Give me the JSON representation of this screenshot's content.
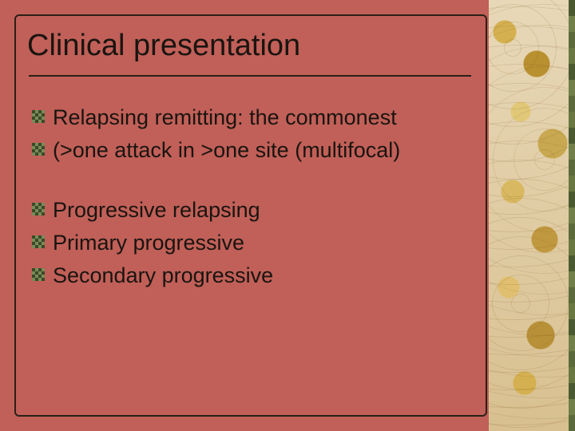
{
  "slide": {
    "title": "Clinical presentation",
    "background_color": "#c06058",
    "frame_border_color": "#2a2018",
    "title_color": "#1a1410",
    "title_fontsize": 38,
    "body_fontsize": 27,
    "body_color": "#1a1410",
    "bullet_fill": "#7a8a58",
    "bullet_pattern": "#3a4a28",
    "groups": [
      {
        "items": [
          "Relapsing remitting: the commonest",
          "(>one attack in >one site (multifocal)"
        ]
      },
      {
        "items": [
          "Progressive relapsing",
          "Primary progressive",
          "Secondary progressive"
        ]
      }
    ],
    "right_strip": {
      "base_gradient": [
        "#e8d8b8",
        "#d8c090"
      ],
      "accent_colors": [
        "#d4b050",
        "#b89030",
        "#e0c878",
        "#c8a850",
        "#d8b860",
        "#c09840",
        "#e0c070",
        "#b89038"
      ],
      "edge_stripe_colors": [
        "#5a6a3a",
        "#708048",
        "#4a5a30",
        "#687840"
      ]
    }
  }
}
